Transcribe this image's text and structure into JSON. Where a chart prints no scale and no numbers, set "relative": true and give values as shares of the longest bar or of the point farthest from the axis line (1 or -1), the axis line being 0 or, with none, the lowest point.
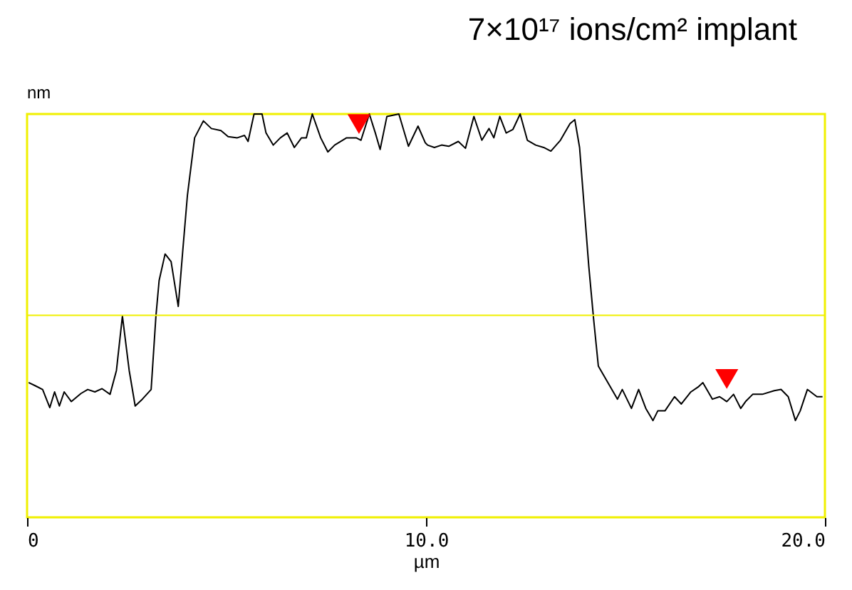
{
  "chart_data": {
    "type": "line",
    "title": "7×10¹⁷ ions/cm² implant",
    "xlabel": "µm",
    "ylabel": "nm",
    "relative": true,
    "xlim": [
      0,
      20
    ],
    "xticks": [
      0,
      {
        "value": 10,
        "label": "10.0"
      },
      {
        "value": 20,
        "label": "20.0"
      }
    ],
    "grid": false,
    "ref_lines": [
      {
        "axis": "y",
        "value": 0.501,
        "color": "#f0f000"
      }
    ],
    "series": [
      {
        "color": "#000000",
        "marker": "none",
        "line_style": "solid",
        "x": [
          0.04,
          0.21,
          0.39,
          0.57,
          0.69,
          0.81,
          0.93,
          1.11,
          1.35,
          1.52,
          1.7,
          1.88,
          2.08,
          2.24,
          2.39,
          2.56,
          2.71,
          2.89,
          3.11,
          3.23,
          3.31,
          3.46,
          3.61,
          3.79,
          3.9,
          4.02,
          4.2,
          4.42,
          4.62,
          4.86,
          5.04,
          5.27,
          5.45,
          5.54,
          5.69,
          5.89,
          5.99,
          6.17,
          6.35,
          6.52,
          6.7,
          6.88,
          7.0,
          7.15,
          7.36,
          7.54,
          7.71,
          8.01,
          8.25,
          8.37,
          8.58,
          8.73,
          8.85,
          9.02,
          9.32,
          9.56,
          9.8,
          9.98,
          10.04,
          10.21,
          10.39,
          10.57,
          10.81,
          10.99,
          11.2,
          11.4,
          11.58,
          11.7,
          11.85,
          12.01,
          12.18,
          12.36,
          12.54,
          12.75,
          12.95,
          13.13,
          13.37,
          13.61,
          13.73,
          13.85,
          13.96,
          14.08,
          14.2,
          14.32,
          14.56,
          14.8,
          14.92,
          15.15,
          15.33,
          15.51,
          15.69,
          15.81,
          15.99,
          16.23,
          16.4,
          16.64,
          16.82,
          16.94,
          17.18,
          17.36,
          17.54,
          17.71,
          17.89,
          18.01,
          18.19,
          18.43,
          18.73,
          18.9,
          19.08,
          19.26,
          19.38,
          19.56,
          19.8,
          19.94
        ],
        "values": [
          0.334,
          0.326,
          0.317,
          0.272,
          0.311,
          0.276,
          0.311,
          0.287,
          0.307,
          0.317,
          0.311,
          0.319,
          0.305,
          0.364,
          0.499,
          0.364,
          0.276,
          0.293,
          0.317,
          0.499,
          0.587,
          0.653,
          0.634,
          0.523,
          0.658,
          0.799,
          0.941,
          0.983,
          0.964,
          0.959,
          0.944,
          0.941,
          0.947,
          0.932,
          1.0,
          1.0,
          0.953,
          0.923,
          0.941,
          0.953,
          0.917,
          0.941,
          0.941,
          1.0,
          0.941,
          0.906,
          0.923,
          0.941,
          0.941,
          0.935,
          1.0,
          0.953,
          0.912,
          0.994,
          1.0,
          0.92,
          0.97,
          0.929,
          0.923,
          0.917,
          0.923,
          0.92,
          0.932,
          0.915,
          0.994,
          0.935,
          0.964,
          0.941,
          0.994,
          0.953,
          0.962,
          1.0,
          0.935,
          0.923,
          0.917,
          0.908,
          0.935,
          0.976,
          0.986,
          0.917,
          0.776,
          0.623,
          0.493,
          0.375,
          0.334,
          0.293,
          0.317,
          0.27,
          0.317,
          0.27,
          0.24,
          0.264,
          0.264,
          0.299,
          0.281,
          0.311,
          0.323,
          0.334,
          0.293,
          0.299,
          0.287,
          0.305,
          0.27,
          0.287,
          0.305,
          0.305,
          0.314,
          0.317,
          0.299,
          0.24,
          0.264,
          0.317,
          0.299,
          0.299
        ]
      },
      {
        "type": "scatter",
        "color": "#ff0000",
        "marker": "triangle",
        "x": [
          8.32,
          17.54
        ],
        "values": [
          0.975,
          0.343
        ]
      }
    ]
  }
}
